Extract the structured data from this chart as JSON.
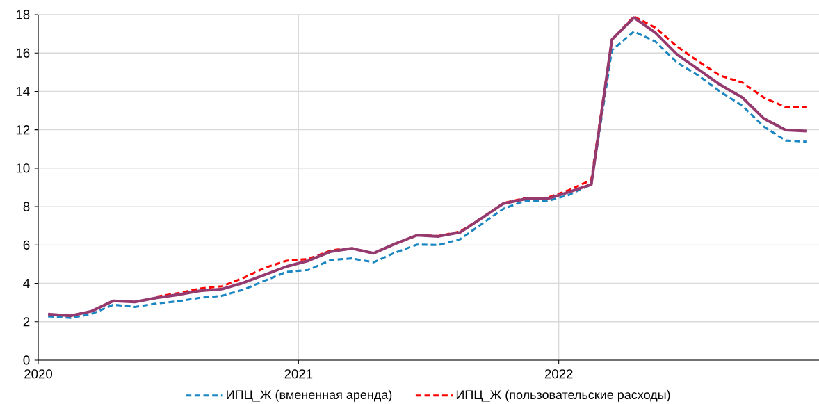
{
  "chart_data": {
    "type": "line",
    "x": [
      "2020-01-15",
      "2020-02-15",
      "2020-03-15",
      "2020-04-15",
      "2020-05-15",
      "2020-06-15",
      "2020-07-15",
      "2020-08-15",
      "2020-09-15",
      "2020-10-15",
      "2020-11-15",
      "2020-12-15",
      "2021-01-15",
      "2021-02-15",
      "2021-03-15",
      "2021-04-15",
      "2021-05-15",
      "2021-06-15",
      "2021-07-15",
      "2021-08-15",
      "2021-09-15",
      "2021-10-15",
      "2021-11-15",
      "2021-12-15",
      "2022-01-15",
      "2022-02-15",
      "2022-03-15",
      "2022-04-15",
      "2022-05-15",
      "2022-06-15",
      "2022-07-15",
      "2022-08-15",
      "2022-09-15",
      "2022-10-15",
      "2022-11-15",
      "2022-12-15"
    ],
    "series": [
      {
        "name": "ИПЦ_Ж (вмененная аренда)",
        "color": "#1a86c2",
        "line_style": "dashed",
        "values": [
          2.28,
          2.2,
          2.4,
          2.89,
          2.77,
          2.95,
          3.07,
          3.25,
          3.35,
          3.67,
          4.15,
          4.6,
          4.7,
          5.22,
          5.3,
          5.1,
          5.6,
          6.02,
          6.0,
          6.3,
          7.11,
          7.89,
          8.31,
          8.28,
          8.6,
          9.15,
          16.15,
          17.12,
          16.6,
          15.49,
          14.82,
          13.98,
          13.25,
          12.17,
          11.44,
          11.38
        ]
      },
      {
        "name": "ИПЦ_Ж (пользовательские расходы)",
        "color": "#ff0000",
        "line_style": "dashed",
        "values": [
          null,
          null,
          null,
          null,
          null,
          3.31,
          3.49,
          3.73,
          3.85,
          4.28,
          4.82,
          5.18,
          5.27,
          5.72,
          5.84,
          5.57,
          6.06,
          6.51,
          6.47,
          6.7,
          7.42,
          8.18,
          8.45,
          8.45,
          8.85,
          9.39,
          16.7,
          17.9,
          17.32,
          16.33,
          15.55,
          14.82,
          14.46,
          13.68,
          13.17,
          13.19
        ]
      },
      {
        "color": "#953a6e",
        "line_style": "solid",
        "values": [
          2.4,
          2.31,
          2.55,
          3.09,
          3.03,
          3.25,
          3.41,
          3.61,
          3.7,
          4.03,
          4.46,
          4.88,
          5.18,
          5.66,
          5.82,
          5.57,
          6.06,
          6.51,
          6.45,
          6.66,
          7.41,
          8.16,
          8.4,
          8.4,
          8.75,
          9.15,
          16.7,
          17.84,
          17.06,
          15.91,
          15.13,
          14.34,
          13.68,
          12.59,
          11.99,
          11.93
        ]
      }
    ],
    "xlim": [
      "2020-01-01",
      "2023-01-01"
    ],
    "xticks": [
      {
        "value": "2020-01-01",
        "label": "2020"
      },
      {
        "value": "2021-01-01",
        "label": "2021"
      },
      {
        "value": "2022-01-01",
        "label": "2022"
      }
    ],
    "ylim": [
      0,
      18
    ],
    "yticks": [
      0,
      2,
      4,
      6,
      8,
      10,
      12,
      14,
      16,
      18
    ],
    "grid": true,
    "legend": "bottom"
  }
}
